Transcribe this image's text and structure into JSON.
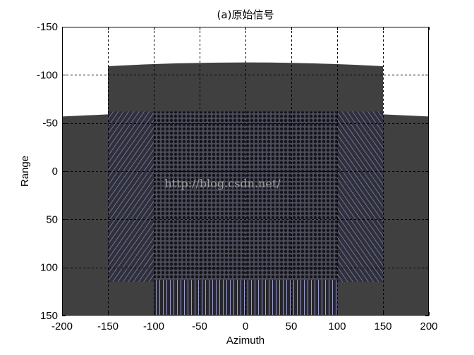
{
  "chart_data": {
    "type": "heatmap",
    "title": "(a)原始信号",
    "xlabel": "Azimuth",
    "ylabel": "Range",
    "xlim": [
      -200,
      200
    ],
    "ylim": [
      -150,
      150
    ],
    "y_reversed": true,
    "x_ticks": [
      "-200",
      "-150",
      "-100",
      "-50",
      "0",
      "50",
      "100",
      "150",
      "200"
    ],
    "x_tick_values": [
      -200,
      -150,
      -100,
      -50,
      0,
      50,
      100,
      150,
      200
    ],
    "y_ticks": [
      "-150",
      "-100",
      "-50",
      "0",
      "50",
      "100",
      "150"
    ],
    "y_tick_values": [
      -150,
      -100,
      -50,
      0,
      50,
      100,
      150
    ],
    "grid": true,
    "colors": {
      "background": "#ffffff",
      "fill": "#404040",
      "dense_region": "#1c1c24",
      "stripe": "#8a8cc0"
    },
    "regions": [
      {
        "name": "outer-left-block",
        "x": [
          -200,
          -150
        ],
        "y": [
          -59,
          150
        ]
      },
      {
        "name": "outer-right-block",
        "x": [
          150,
          200
        ],
        "y": [
          -59,
          150
        ]
      },
      {
        "name": "upper-hump",
        "x": [
          -150,
          150
        ],
        "y": [
          -109,
          150
        ],
        "top_center": -113
      },
      {
        "name": "left-diagonal-band",
        "x": [
          -150,
          -100
        ],
        "y": [
          -62,
          115
        ],
        "pattern": "diagonal"
      },
      {
        "name": "right-diagonal-band",
        "x": [
          100,
          150
        ],
        "y": [
          -62,
          115
        ],
        "pattern": "diagonal"
      },
      {
        "name": "central-dot-lattice",
        "x": [
          -100,
          100
        ],
        "y": [
          -62,
          113
        ],
        "pattern": "dots"
      },
      {
        "name": "bottom-vertical-stripes",
        "x": [
          -100,
          100
        ],
        "y": [
          113,
          150
        ],
        "pattern": "vertical"
      }
    ],
    "watermark": "http://blog.csdn.net/"
  }
}
